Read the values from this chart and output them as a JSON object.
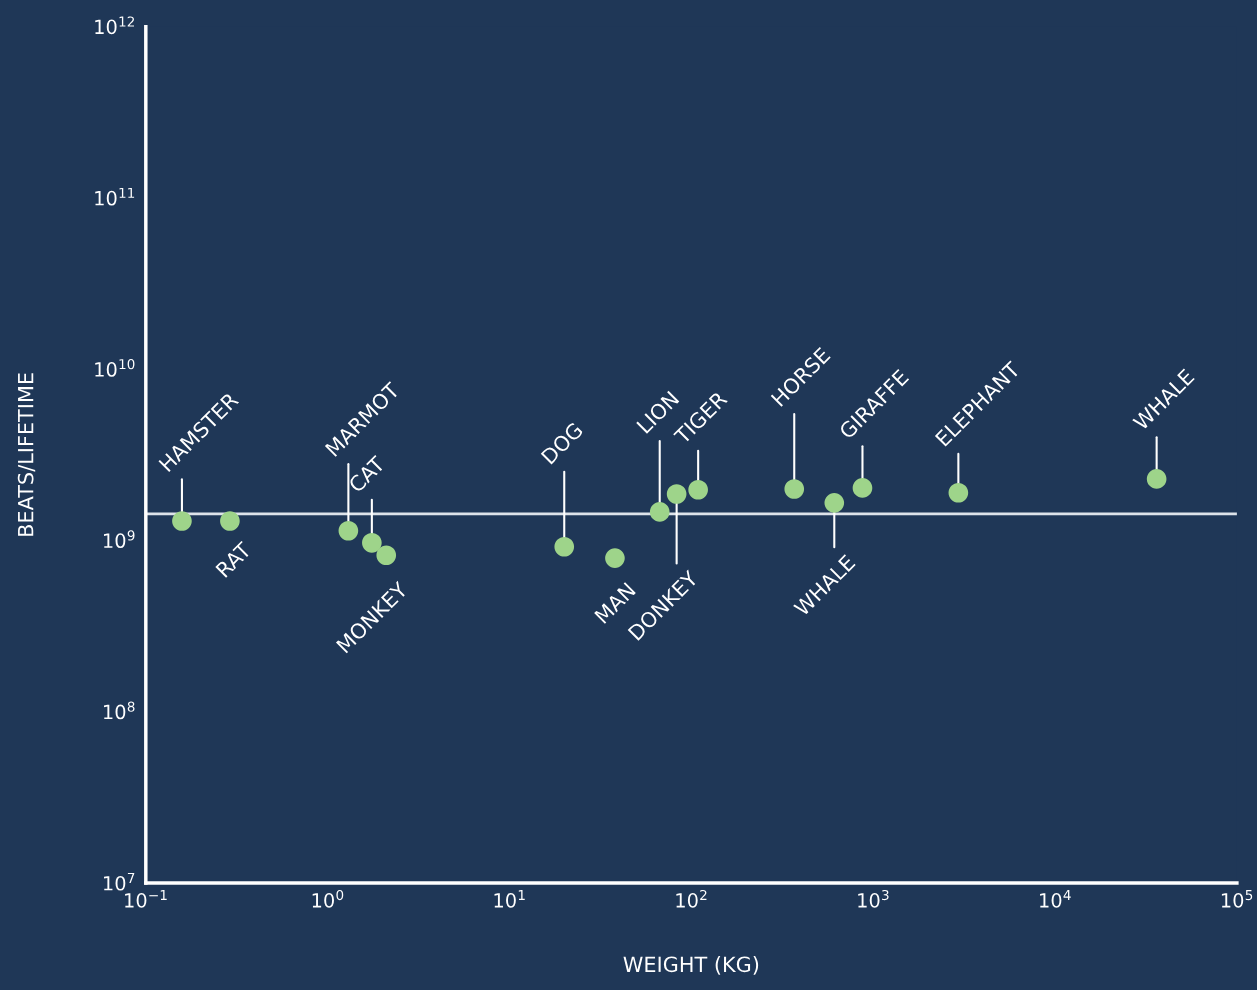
{
  "chart_data": {
    "type": "scatter",
    "xlabel": "WEIGHT (KG)",
    "ylabel": "BEATS/LIFETIME",
    "log": "xy",
    "grid": false,
    "marker": "circle",
    "x": [
      0.158,
      0.29,
      1.3,
      1.75,
      2.1,
      20,
      38,
      67,
      83,
      109,
      368,
      611,
      873,
      2940,
      36200
    ],
    "series": [
      {
        "color": "#9ed48a",
        "values": [
          1300000000.0,
          1300000000.0,
          1140000000.0,
          970000000.0,
          820000000.0,
          920000000.0,
          790000000.0,
          1470000000.0,
          1870000000.0,
          1980000000.0,
          2000000000.0,
          1660000000.0,
          2030000000.0,
          1900000000.0,
          2290000000.0
        ]
      }
    ],
    "annotations": [
      {
        "text": "HAMSTER",
        "x": 0.158,
        "y": 1300000000.0
      },
      {
        "text": "RAT",
        "x": 0.29,
        "y": 1300000000.0
      },
      {
        "text": "MARMOT",
        "x": 1.3,
        "y": 1140000000.0
      },
      {
        "text": "CAT",
        "x": 1.75,
        "y": 970000000.0
      },
      {
        "text": "MONKEY",
        "x": 2.1,
        "y": 820000000.0
      },
      {
        "text": "DOG",
        "x": 20,
        "y": 920000000.0
      },
      {
        "text": "MAN",
        "x": 38,
        "y": 790000000.0
      },
      {
        "text": "LION",
        "x": 67,
        "y": 1470000000.0
      },
      {
        "text": "DONKEY",
        "x": 83,
        "y": 1870000000.0
      },
      {
        "text": "TIGER",
        "x": 109,
        "y": 1980000000.0
      },
      {
        "text": "HORSE",
        "x": 368,
        "y": 2000000000.0
      },
      {
        "text": "WHALE",
        "x": 611,
        "y": 1660000000.0
      },
      {
        "text": "GIRAFFE",
        "x": 873,
        "y": 2030000000.0
      },
      {
        "text": "ELEPHANT",
        "x": 2940,
        "y": 1900000000.0
      },
      {
        "text": "WHALE",
        "x": 36200,
        "y": 2290000000.0
      }
    ],
    "ref_lines": [
      {
        "axis": "y",
        "value": 1430000000.0,
        "color": "#dde3ea"
      }
    ],
    "xlim": [
      0.1,
      100000
    ],
    "ylim": [
      10000000.0,
      1000000000000.0
    ],
    "xticks": [
      {
        "value": 0.1,
        "label": "10$^{−1}$"
      },
      {
        "value": 1,
        "label": "10$^{0}$"
      },
      {
        "value": 10,
        "label": "10$^{1}$"
      },
      {
        "value": 100,
        "label": "10$^{2}$"
      },
      {
        "value": 1000,
        "label": "10$^{3}$"
      },
      {
        "value": 10000,
        "label": "10$^{4}$"
      },
      {
        "value": 100000,
        "label": "10$^{5}$"
      }
    ],
    "yticks": [
      {
        "value": 10000000.0,
        "label": "10$^{7}$"
      },
      {
        "value": 100000000.0,
        "label": "10$^{8}$"
      },
      {
        "value": 1000000000.0,
        "label": "10$^{9}$"
      },
      {
        "value": 10000000000.0,
        "label": "10$^{10}$"
      },
      {
        "value": 100000000000.0,
        "label": "10$^{11}$"
      },
      {
        "value": 1000000000000.0,
        "label": "10$^{12}$"
      }
    ]
  }
}
